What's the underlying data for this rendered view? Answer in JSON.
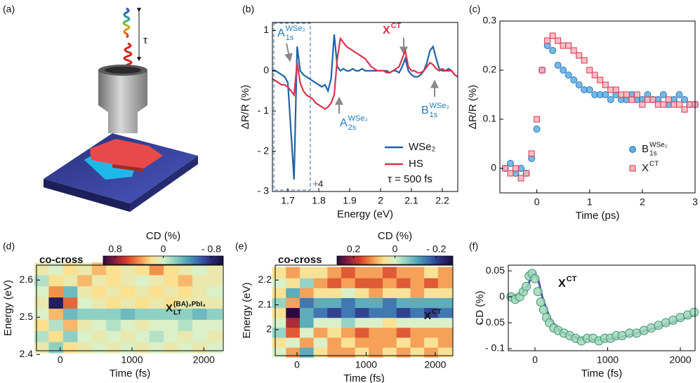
{
  "illustration": {
    "label": "(a)",
    "delay": "τ"
  },
  "chart_data": [
    {
      "type": "line",
      "panel": "(b)",
      "xlabel": "Energy (eV)",
      "ylabel": "ΔR/R (%)",
      "x": [
        1.65,
        1.66,
        1.67,
        1.68,
        1.69,
        1.7,
        1.71,
        1.72,
        1.73,
        1.74,
        1.75,
        1.76,
        1.77,
        1.78,
        1.79,
        1.8,
        1.81,
        1.82,
        1.83,
        1.84,
        1.85,
        1.86,
        1.87,
        1.88,
        1.89,
        1.9,
        1.91,
        1.92,
        1.93,
        1.94,
        1.95,
        1.96,
        1.97,
        1.98,
        1.99,
        2,
        2.01,
        2.02,
        2.03,
        2.04,
        2.05,
        2.06,
        2.07,
        2.08,
        2.09,
        2.1,
        2.11,
        2.12,
        2.13,
        2.14,
        2.15,
        2.16,
        2.17,
        2.18,
        2.19,
        2.2,
        2.21,
        2.22,
        2.23,
        2.24,
        2.25
      ],
      "series": [
        {
          "name": "WSe₂",
          "color": "#1f63a8",
          "values": [
            0,
            0,
            -0.05,
            -0.1,
            -0.15,
            -0.3,
            -1.5,
            -2.7,
            0.6,
            0,
            -0.1,
            -0.15,
            -0.2,
            -0.25,
            -0.3,
            -0.35,
            -0.4,
            -0.35,
            -0.5,
            -0.2,
            0.9,
            0.1,
            0,
            0.05,
            0,
            0,
            0.05,
            0,
            0,
            0.05,
            0,
            0,
            0,
            0,
            0,
            0,
            0,
            0,
            -0.05,
            0,
            0,
            -0.05,
            0.1,
            0.3,
            0,
            -0.1,
            -0.15,
            -0.15,
            -0.1,
            0,
            0.2,
            0.5,
            0.6,
            0.3,
            0.05,
            0,
            0,
            0.05,
            0,
            -0.1,
            -0.15
          ]
        },
        {
          "name": "HS",
          "color": "#d8344c",
          "values": [
            -0.2,
            -0.25,
            -0.3,
            -0.35,
            -0.35,
            -0.4,
            -0.5,
            -0.6,
            0.2,
            -0.3,
            -0.5,
            -0.6,
            -0.65,
            -0.7,
            -0.8,
            -0.85,
            -0.9,
            -0.95,
            -0.9,
            -0.8,
            -0.6,
            0.3,
            0.8,
            0.7,
            0.6,
            0.55,
            0.5,
            0.45,
            0.4,
            0.35,
            0.3,
            0.2,
            0.1,
            0.05,
            0,
            0,
            0,
            -0.05,
            -0.05,
            0,
            0.05,
            0.1,
            0.3,
            0.5,
            0.1,
            0,
            0,
            -0.05,
            -0.05,
            0,
            0.1,
            0.2,
            0.15,
            0.05,
            0,
            0.05,
            0,
            0,
            0,
            -0.1,
            -0.15
          ]
        }
      ],
      "xlim": [
        1.65,
        2.25
      ],
      "ylim": [
        -3,
        1.2
      ],
      "xticks": [
        1.7,
        1.8,
        1.9,
        2,
        2.1,
        2.2
      ],
      "yticks": [
        {
          "value": -3,
          "label": "- 3"
        },
        {
          "value": -2,
          "label": "- 2"
        },
        {
          "value": -1,
          "label": "- 1"
        },
        0,
        1
      ],
      "annotations": [
        {
          "text": "A",
          "sub": "1s",
          "sup": "WSe₂",
          "color": "#1f7cc0"
        },
        {
          "text": "X",
          "sup": "CT",
          "color": "#d8344c"
        },
        {
          "text": "A",
          "sub": "2s",
          "sup": "WSe₂",
          "color": "#1f7cc0"
        },
        {
          "text": "B",
          "sub": "1s",
          "sup": "WSe₂",
          "color": "#1f7cc0"
        }
      ],
      "note": "τ = 500 fs",
      "scale_note": "÷4"
    },
    {
      "type": "scatter",
      "panel": "(c)",
      "xlabel": "Time (ps)",
      "ylabel": "ΔR/R (%)",
      "x": [
        -0.6,
        -0.5,
        -0.4,
        -0.3,
        -0.2,
        -0.1,
        0,
        0.1,
        0.2,
        0.3,
        0.4,
        0.5,
        0.6,
        0.7,
        0.8,
        0.9,
        1,
        1.1,
        1.2,
        1.3,
        1.4,
        1.5,
        1.6,
        1.7,
        1.8,
        1.9,
        2,
        2.1,
        2.2,
        2.3,
        2.4,
        2.5,
        2.6,
        2.7,
        2.8,
        2.9,
        3
      ],
      "series": [
        {
          "name": "B",
          "name_sub": "1s",
          "name_sup": "WSe₂",
          "marker": "circle",
          "color": "#5aaee3",
          "edgecolor": "#2b78b8",
          "values": [
            0,
            0.01,
            -0.01,
            0,
            -0.01,
            0.02,
            0.08,
            0.2,
            0.25,
            0.24,
            0.21,
            0.2,
            0.19,
            0.18,
            0.17,
            0.16,
            0.16,
            0.15,
            0.15,
            0.15,
            0.14,
            0.15,
            0.14,
            0.14,
            0.15,
            0.14,
            0.14,
            0.15,
            0.14,
            0.14,
            0.15,
            0.13,
            0.14,
            0.15,
            0.14,
            0.13,
            0.13
          ]
        },
        {
          "name": "X",
          "name_sup": "CT",
          "marker": "square",
          "color": "#f6b3bc",
          "edgecolor": "#d8344c",
          "values": [
            0,
            -0.01,
            0,
            -0.02,
            -0.01,
            0.03,
            0.1,
            0.2,
            0.26,
            0.27,
            0.26,
            0.25,
            0.25,
            0.24,
            0.23,
            0.22,
            0.2,
            0.19,
            0.18,
            0.17,
            0.16,
            0.16,
            0.15,
            0.15,
            0.14,
            0.15,
            0.13,
            0.14,
            0.14,
            0.13,
            0.13,
            0.14,
            0.13,
            0.13,
            0.12,
            0.13,
            0.13
          ]
        }
      ],
      "xlim": [
        -0.7,
        3
      ],
      "ylim": [
        -0.05,
        0.3
      ],
      "xticks": [
        0,
        1,
        2,
        3
      ],
      "yticks": [
        0,
        0.1,
        0.2,
        0.3
      ]
    },
    {
      "type": "heatmap",
      "panel": "(d)",
      "xlabel": "Time (fs)",
      "ylabel": "Energy (eV)",
      "label": "co-cross",
      "x": [
        -250,
        -50,
        150,
        350,
        550,
        750,
        950,
        1150,
        1350,
        1550,
        1750,
        1950,
        2150
      ],
      "y": [
        2.42,
        2.45,
        2.48,
        2.51,
        2.54,
        2.57,
        2.6,
        2.63
      ],
      "z": [
        [
          0.1,
          -0.2,
          0.2,
          0.1,
          0,
          0.1,
          0,
          0.1,
          0,
          0.1,
          0,
          0.1,
          0
        ],
        [
          -0.1,
          0.2,
          -0.2,
          0,
          0.1,
          0,
          0.1,
          0,
          -0.1,
          0,
          0.1,
          0,
          0.1
        ],
        [
          0.2,
          -0.1,
          0.3,
          0.1,
          0,
          -0.1,
          0,
          0.1,
          0,
          0,
          -0.1,
          0,
          0
        ],
        [
          0,
          0.3,
          -0.3,
          -0.2,
          -0.2,
          -0.2,
          -0.3,
          -0.2,
          -0.2,
          -0.2,
          -0.2,
          -0.3,
          -0.2
        ],
        [
          0.1,
          -0.9,
          0.5,
          0,
          0.1,
          0.2,
          0.1,
          0.2,
          0.1,
          0.2,
          0.1,
          0.1,
          0.1
        ],
        [
          0,
          0.4,
          -0.3,
          0.1,
          0.2,
          0.1,
          0.2,
          0.1,
          0.2,
          0.1,
          0.2,
          0.1,
          0
        ],
        [
          -0.1,
          0.2,
          0.1,
          0.3,
          0.1,
          0.2,
          0.1,
          0,
          0.1,
          0.2,
          0.3,
          0.1,
          0.1
        ],
        [
          0.1,
          0,
          0.2,
          0.1,
          0.3,
          0.2,
          0.1,
          0.2,
          0.4,
          0.2,
          0.1,
          0,
          0.1
        ]
      ],
      "xlim": [
        -330,
        2270
      ],
      "ylim": [
        2.41,
        2.64
      ],
      "xticks": [
        0,
        1000,
        2000
      ],
      "yticks": [
        2.4,
        2.5,
        2.6
      ],
      "clim": [
        -1,
        1
      ],
      "ctitle": "CD (%)",
      "cticks": [
        0.8,
        0,
        {
          "value": -0.8,
          "label": "- 0.8"
        }
      ],
      "colormap": [
        "#2b0b3f",
        "#8c1d40",
        "#d7402b",
        "#f3904a",
        "#fbe08f",
        "#d9f0c8",
        "#8fd0c4",
        "#4fa3b8",
        "#3a63ad",
        "#2c2a7c",
        "#1a0f3a"
      ],
      "annotation": {
        "text": "X",
        "sub": "LT",
        "sup": "(BA)₂PbI₄"
      }
    },
    {
      "type": "heatmap",
      "panel": "(e)",
      "xlabel": "Time (fs)",
      "ylabel": "Energy (eV)",
      "label": "co-cross",
      "x": [
        -250,
        -50,
        150,
        350,
        550,
        750,
        950,
        1150,
        1350,
        1550,
        1750,
        1950,
        2150
      ],
      "y": [
        1.91,
        1.95,
        1.99,
        2.03,
        2.07,
        2.11,
        2.15,
        2.19,
        2.23
      ],
      "z": [
        [
          0,
          0.1,
          -0.1,
          0.05,
          0.1,
          0.1,
          0.05,
          0.1,
          0.05,
          0.1,
          0.05,
          0.1,
          0.05
        ],
        [
          0.05,
          0,
          0.1,
          0,
          0.1,
          0.05,
          0.1,
          0.1,
          0.1,
          0.05,
          0.1,
          0.05,
          0.1
        ],
        [
          -0.05,
          0.15,
          0,
          0.1,
          0.05,
          0.1,
          0.15,
          0.1,
          0.1,
          0.15,
          0.1,
          0.1,
          0.1
        ],
        [
          0,
          0.2,
          -0.1,
          0,
          0,
          -0.05,
          0,
          0,
          0.05,
          0,
          0,
          0,
          0
        ],
        [
          0.05,
          0.3,
          -0.1,
          -0.15,
          -0.2,
          -0.15,
          -0.2,
          -0.15,
          -0.15,
          -0.2,
          -0.15,
          -0.2,
          -0.15
        ],
        [
          -0.05,
          0.1,
          -0.15,
          -0.1,
          -0.1,
          -0.15,
          -0.1,
          -0.1,
          -0.15,
          -0.1,
          -0.1,
          -0.1,
          -0.1
        ],
        [
          0.05,
          -0.1,
          0.1,
          0.05,
          0.05,
          0,
          0.05,
          0.1,
          0.05,
          0.05,
          0.1,
          0.05,
          0.05
        ],
        [
          0,
          0.05,
          -0.05,
          0.1,
          0.15,
          0.1,
          0.15,
          0.15,
          0.1,
          0.15,
          0.1,
          0.15,
          0.1
        ],
        [
          0.05,
          0.1,
          0.05,
          0.05,
          0.1,
          0.15,
          0.1,
          0.1,
          0.15,
          0.1,
          0.1,
          0.05,
          0.1
        ]
      ],
      "xlim": [
        -315,
        2255
      ],
      "ylim": [
        1.895,
        2.26
      ],
      "xticks": [
        0,
        1000,
        2000
      ],
      "yticks": [
        2,
        2.1,
        2.2
      ],
      "clim": [
        -0.28,
        0.28
      ],
      "ctitle": "CD (%)",
      "cticks": [
        0.2,
        0,
        {
          "value": -0.2,
          "label": "- 0.2"
        }
      ],
      "colormap": [
        "#2b0b3f",
        "#8c1d40",
        "#d7402b",
        "#f3904a",
        "#fbe08f",
        "#d9f0c8",
        "#8fd0c4",
        "#4fa3b8",
        "#3a63ad",
        "#2c2a7c",
        "#1a0f3a"
      ],
      "annotation": {
        "text": "X",
        "sup": "CT"
      }
    },
    {
      "type": "scatter",
      "panel": "(f)",
      "xlabel": "Time (fs)",
      "ylabel": "CD (%)",
      "x": [
        -330,
        -270,
        -210,
        -160,
        -120,
        -80,
        -40,
        0,
        40,
        80,
        120,
        160,
        200,
        260,
        320,
        400,
        480,
        560,
        640,
        720,
        800,
        880,
        960,
        1040,
        1120,
        1200,
        1300,
        1400,
        1500,
        1600,
        1700,
        1800,
        1900,
        2000,
        2100,
        2190
      ],
      "series": [
        {
          "marker": "circle",
          "color": "#9fd8b8",
          "edgecolor": "#3f8f6f",
          "values": [
            0,
            -0.005,
            0,
            0.01,
            0.02,
            0.04,
            0.045,
            0.035,
            0.01,
            -0.01,
            -0.025,
            -0.04,
            -0.05,
            -0.06,
            -0.065,
            -0.07,
            -0.075,
            -0.08,
            -0.085,
            -0.08,
            -0.08,
            -0.085,
            -0.08,
            -0.08,
            -0.075,
            -0.075,
            -0.07,
            -0.07,
            -0.065,
            -0.06,
            -0.055,
            -0.05,
            -0.045,
            -0.04,
            -0.035,
            -0.03
          ]
        }
      ],
      "fit": {
        "color": "#5a4fa8",
        "x": [
          -350,
          -200,
          -100,
          -50,
          0,
          50,
          100,
          200,
          300,
          400,
          600,
          800,
          1000,
          1200,
          1400,
          1600,
          1800,
          2000,
          2200
        ],
        "values": [
          0,
          0.005,
          0.02,
          0.04,
          0.045,
          0.03,
          0,
          -0.04,
          -0.06,
          -0.07,
          -0.08,
          -0.083,
          -0.082,
          -0.077,
          -0.07,
          -0.062,
          -0.053,
          -0.044,
          -0.035
        ]
      },
      "xlim": [
        -367,
        2203
      ],
      "ylim": [
        -0.104,
        0.061
      ],
      "xticks": [
        0,
        1000,
        2000
      ],
      "yticks": [
        {
          "value": -0.1,
          "label": "- 0.1"
        },
        {
          "value": -0.05,
          "label": "- 0.05"
        },
        0,
        0.05
      ],
      "annotations": [
        {
          "text": "X",
          "sup": "CT",
          "color": "#111111"
        }
      ]
    }
  ]
}
